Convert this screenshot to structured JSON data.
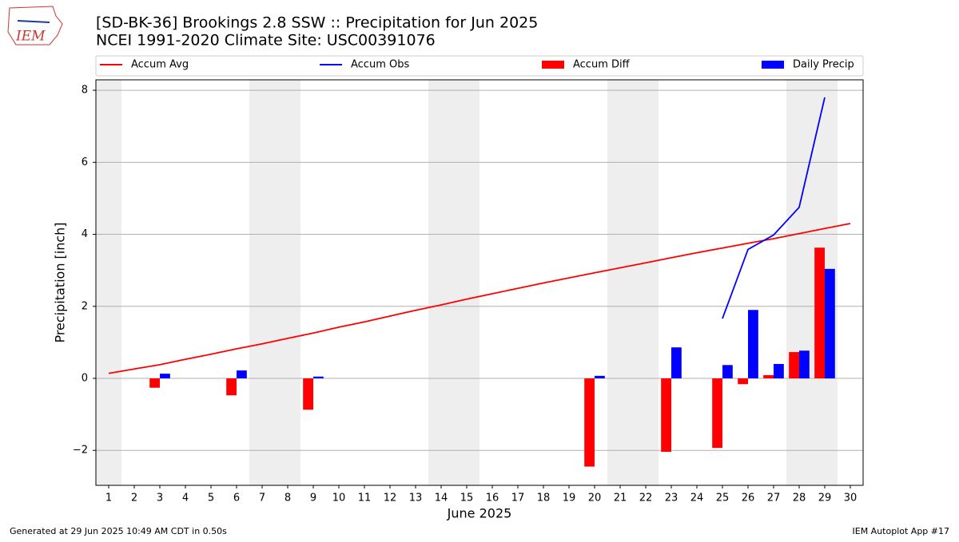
{
  "logo": "IEM",
  "footer_left": "Generated at 29 Jun 2025 10:49 AM CDT in 0.50s",
  "footer_right": "IEM Autoplot App #17",
  "chart_data": {
    "type": "combo",
    "title": "[SD-BK-36] Brookings 2.8 SSW :: Precipitation for Jun 2025",
    "subtitle": "NCEI 1991-2020 Climate Site: USC00391076",
    "x_label": "June 2025",
    "y_label": "Precipitation [inch]",
    "x": [
      1,
      2,
      3,
      4,
      5,
      6,
      7,
      8,
      9,
      10,
      11,
      12,
      13,
      14,
      15,
      16,
      17,
      18,
      19,
      20,
      21,
      22,
      23,
      24,
      25,
      26,
      27,
      28,
      29,
      30
    ],
    "xlim": [
      0.5,
      30.5
    ],
    "xticks": [
      1,
      2,
      3,
      4,
      5,
      6,
      7,
      8,
      9,
      10,
      11,
      12,
      13,
      14,
      15,
      16,
      17,
      18,
      19,
      20,
      21,
      22,
      23,
      24,
      25,
      26,
      27,
      28,
      29,
      30
    ],
    "ylim": [
      -2.97,
      8.29
    ],
    "yticks": [
      {
        "value": -2,
        "label": "−2"
      },
      0,
      2,
      4,
      6,
      8
    ],
    "grid": true,
    "shaded_days": [
      1,
      7,
      8,
      14,
      15,
      21,
      22,
      28,
      29
    ],
    "shade_color": "#eeeeee",
    "legend": "top",
    "series": [
      {
        "name": "Accum Avg",
        "type": "line",
        "color": "#ff0000",
        "values": [
          0.14,
          0.26,
          0.38,
          0.53,
          0.67,
          0.82,
          0.96,
          1.11,
          1.26,
          1.42,
          1.57,
          1.73,
          1.89,
          2.04,
          2.2,
          2.35,
          2.5,
          2.65,
          2.79,
          2.93,
          3.07,
          3.21,
          3.35,
          3.49,
          3.62,
          3.75,
          3.88,
          4.02,
          4.16,
          4.3
        ]
      },
      {
        "name": "Accum Obs",
        "type": "line",
        "color": "#0000ff",
        "values": [
          null,
          null,
          null,
          null,
          null,
          null,
          null,
          null,
          null,
          null,
          null,
          null,
          null,
          null,
          null,
          null,
          null,
          null,
          null,
          null,
          null,
          null,
          null,
          null,
          1.66,
          3.58,
          3.98,
          4.75,
          7.8,
          null
        ]
      },
      {
        "name": "Accum Diff",
        "type": "bar",
        "color": "#ff0000",
        "values": [
          null,
          null,
          -0.26,
          null,
          null,
          -0.47,
          null,
          null,
          -0.87,
          null,
          null,
          null,
          null,
          null,
          null,
          null,
          null,
          null,
          null,
          -2.45,
          null,
          null,
          -2.04,
          null,
          -1.93,
          -0.16,
          0.09,
          0.73,
          3.63,
          null
        ]
      },
      {
        "name": "Daily Precip",
        "type": "bar",
        "color": "#0000ff",
        "values": [
          null,
          null,
          0.13,
          null,
          null,
          0.22,
          null,
          null,
          0.05,
          null,
          null,
          null,
          null,
          null,
          null,
          null,
          null,
          null,
          null,
          0.07,
          null,
          null,
          0.86,
          null,
          0.37,
          1.9,
          0.4,
          0.77,
          3.04,
          null
        ]
      }
    ]
  }
}
